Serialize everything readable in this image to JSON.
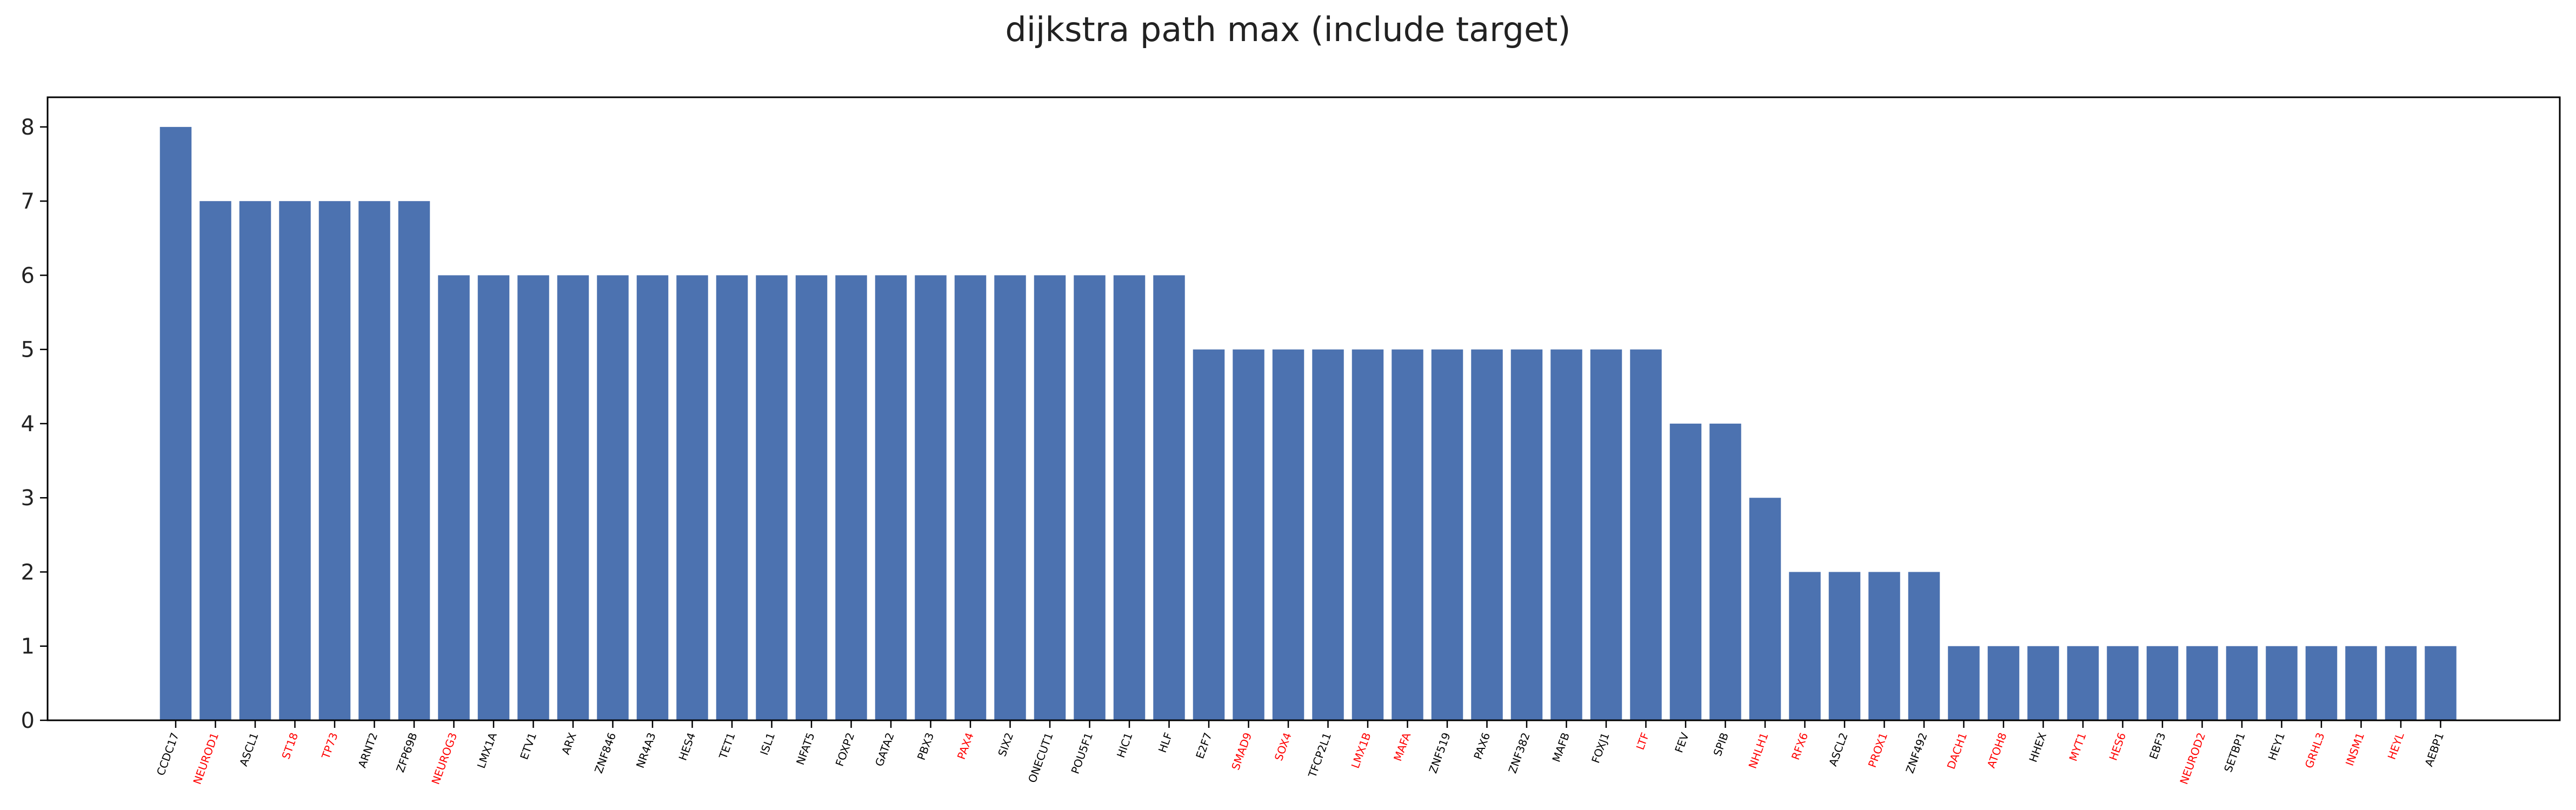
{
  "chart_data": {
    "type": "bar",
    "title": "dijkstra path max (include target)",
    "xlabel": "",
    "ylabel": "",
    "ylim": [
      0,
      8.4
    ],
    "yticks": [
      0,
      1,
      2,
      3,
      4,
      5,
      6,
      7,
      8
    ],
    "grid": false,
    "bar_color": "#4c72b0",
    "label_colors": {
      "normal": "#000000",
      "highlight": "#ff0000"
    },
    "categories": [
      "CCDC17",
      "NEUROD1",
      "ASCL1",
      "ST18",
      "TP73",
      "ARNT2",
      "ZFP69B",
      "NEUROG3",
      "LMX1A",
      "ETV1",
      "ARX",
      "ZNF846",
      "NR4A3",
      "HES4",
      "TET1",
      "ISL1",
      "NFAT5",
      "FOXP2",
      "GATA2",
      "PBX3",
      "PAX4",
      "SIX2",
      "ONECUT1",
      "POU5F1",
      "HIC1",
      "HLF",
      "E2F7",
      "SMAD9",
      "SOX4",
      "TFCP2L1",
      "LMX1B",
      "MAFA",
      "ZNF519",
      "PAX6",
      "ZNF382",
      "MAFB",
      "FOXJ1",
      "LTF",
      "FEV",
      "SPIB",
      "NHLH1",
      "RFX6",
      "ASCL2",
      "PROX1",
      "ZNF492",
      "DACH1",
      "ATOH8",
      "HHEX",
      "MYT1",
      "HES6",
      "EBF3",
      "NEUROD2",
      "SETBP1",
      "HEY1",
      "GRHL3",
      "INSM1",
      "HEYL",
      "AEBP1"
    ],
    "values": [
      8,
      7,
      7,
      7,
      7,
      7,
      7,
      6,
      6,
      6,
      6,
      6,
      6,
      6,
      6,
      6,
      6,
      6,
      6,
      6,
      6,
      6,
      6,
      6,
      6,
      6,
      5,
      5,
      5,
      5,
      5,
      5,
      5,
      5,
      5,
      5,
      5,
      5,
      4,
      4,
      3,
      2,
      2,
      2,
      2,
      1,
      1,
      1,
      1,
      1,
      1,
      1,
      1,
      1,
      1,
      1,
      1,
      1
    ],
    "highlighted": [
      false,
      true,
      false,
      true,
      true,
      false,
      false,
      true,
      false,
      false,
      false,
      false,
      false,
      false,
      false,
      false,
      false,
      false,
      false,
      false,
      true,
      false,
      false,
      false,
      false,
      false,
      false,
      true,
      true,
      false,
      true,
      true,
      false,
      false,
      false,
      false,
      false,
      true,
      false,
      false,
      true,
      true,
      false,
      true,
      false,
      true,
      true,
      false,
      true,
      true,
      false,
      true,
      false,
      false,
      true,
      true,
      true,
      false
    ]
  }
}
